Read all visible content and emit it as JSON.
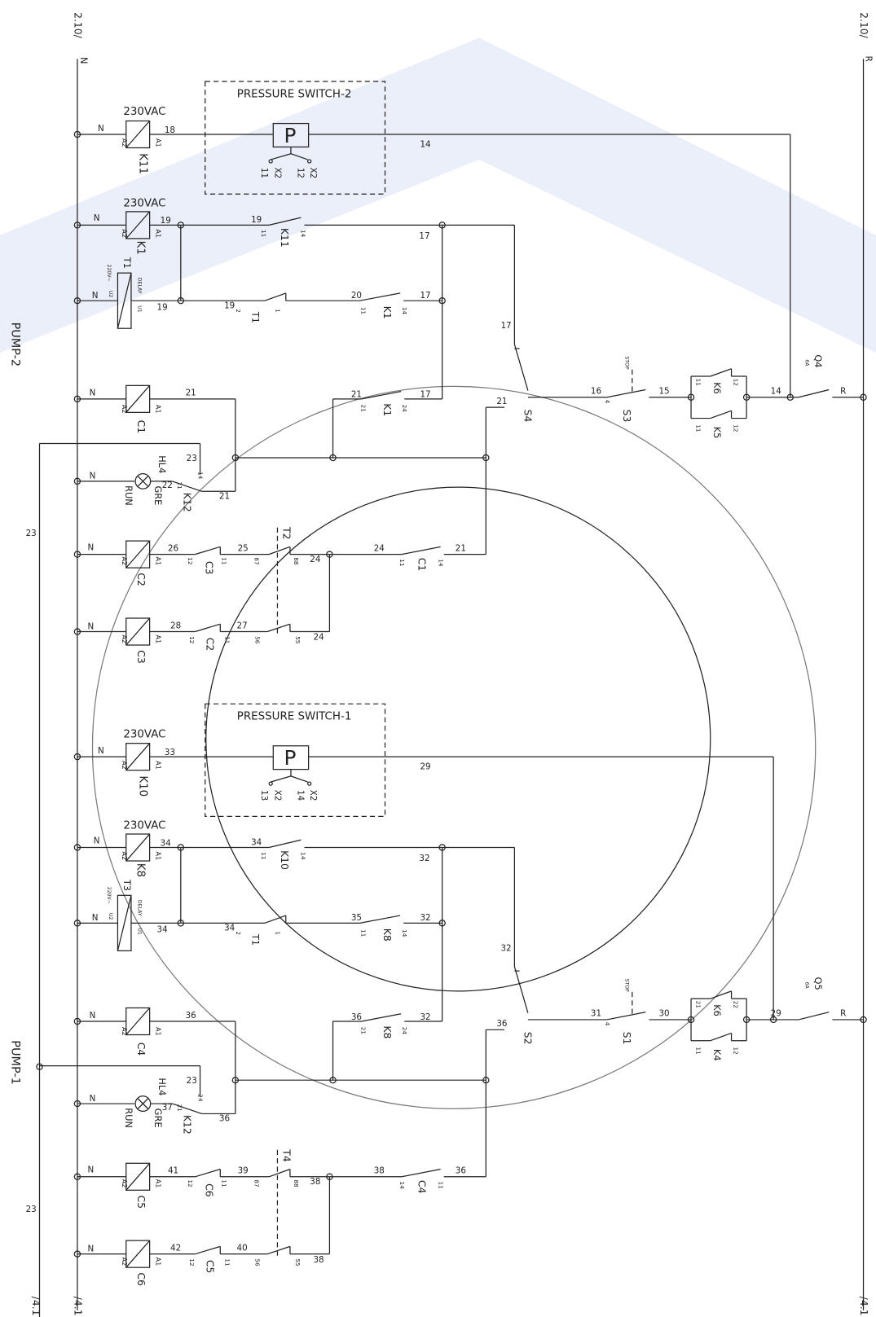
{
  "rails": [
    "2.10/",
    "N",
    "2.10/",
    "R",
    "PUMP-2",
    "PUMP-1",
    "23",
    "23",
    "/4.1",
    "/4.1",
    "/4.1"
  ],
  "pump_2": [
    "PRESSURE SWITCH-2",
    "230VAC",
    "N",
    "18",
    "A2",
    "A1",
    "K11",
    "P",
    "14",
    "X2",
    "12",
    "X2",
    "11",
    "230VAC",
    "N",
    "19",
    "A2",
    "A1",
    "K1",
    "19",
    "11",
    "K11",
    "14",
    "17",
    "17",
    "220V~",
    "T1",
    "DELAY",
    "N",
    "U2",
    "U1",
    "19",
    "19",
    "2",
    "1",
    "T1",
    "20",
    "11",
    "K1",
    "14",
    "17",
    "N",
    "21",
    "A2",
    "A1",
    "C1",
    "21",
    "21",
    "K1",
    "24",
    "17",
    "21",
    "S4",
    "STOP",
    "16",
    "4",
    "S3",
    "15",
    "11",
    "K6",
    "12",
    "11",
    "K5",
    "12",
    "14",
    "Q4",
    "6A",
    "R",
    "N",
    "23",
    "14",
    "HL4",
    "22",
    "11",
    "K12",
    "21",
    "GRE",
    "RUN",
    "N",
    "26",
    "A2",
    "A1",
    "C2",
    "12",
    "C3",
    "11",
    "25",
    "87",
    "T2",
    "88",
    "24",
    "24",
    "11",
    "C1",
    "14",
    "21",
    "N",
    "28",
    "A2",
    "A1",
    "C3",
    "12",
    "C2",
    "11",
    "27",
    "56",
    "55",
    "24"
  ],
  "pump_1": [
    "PRESSURE SWITCH-1",
    "230VAC",
    "N",
    "33",
    "A2",
    "A1",
    "K10",
    "P",
    "29",
    "X2",
    "14",
    "X2",
    "13",
    "230VAC",
    "N",
    "34",
    "A2",
    "A1",
    "K8",
    "34",
    "11",
    "K10",
    "14",
    "32",
    "32",
    "220V~",
    "T3",
    "DELAY",
    "N",
    "U2",
    "U1",
    "34",
    "34",
    "2",
    "1",
    "T1",
    "35",
    "11",
    "K8",
    "14",
    "32",
    "N",
    "36",
    "A2",
    "A1",
    "C4",
    "36",
    "21",
    "K8",
    "24",
    "32",
    "36",
    "S2",
    "STOP",
    "31",
    "4",
    "S1",
    "30",
    "21",
    "K6",
    "22",
    "11",
    "K4",
    "12",
    "29",
    "Q5",
    "6A",
    "R",
    "N",
    "23",
    "24",
    "HL4",
    "37",
    "21",
    "K12",
    "36",
    "GRE",
    "RUN",
    "N",
    "41",
    "A2",
    "A1",
    "C5",
    "12",
    "C6",
    "11",
    "39",
    "87",
    "T4",
    "88",
    "38",
    "38",
    "14",
    "C4",
    "11",
    "36",
    "N",
    "42",
    "A2",
    "A1",
    "C6",
    "12",
    "C5",
    "11",
    "40",
    "56",
    "55",
    "38"
  ]
}
